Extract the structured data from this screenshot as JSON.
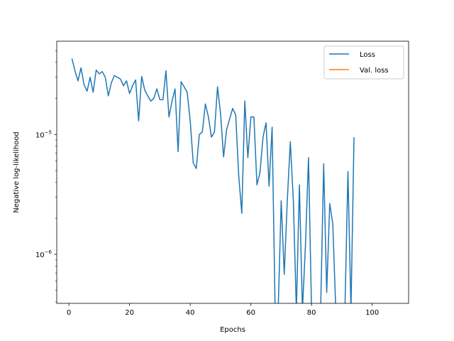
{
  "chart_data": {
    "type": "line",
    "xlabel": "Epochs",
    "ylabel": "Negative log-likelihood",
    "yscale": "log",
    "xlim": [
      -4,
      112
    ],
    "ylim": [
      3.9e-07,
      6e-05
    ],
    "grid": false,
    "legend_position": "top-right",
    "x_ticks": [
      0,
      20,
      40,
      60,
      80,
      100
    ],
    "x_tick_labels": [
      "0",
      "20",
      "40",
      "60",
      "80",
      "100"
    ],
    "y_ticks": [
      1e-06,
      1e-05
    ],
    "y_tick_labels": [
      {
        "base": "10",
        "exp": "−6"
      },
      {
        "base": "10",
        "exp": "−5"
      }
    ],
    "series": [
      {
        "name": "Loss",
        "color": "#1f77b4",
        "x": [
          1,
          2,
          3,
          4,
          5,
          6,
          7,
          8,
          9,
          10,
          11,
          12,
          13,
          14,
          15,
          16,
          17,
          18,
          19,
          20,
          21,
          22,
          23,
          24,
          25,
          26,
          27,
          28,
          29,
          30,
          31,
          32,
          33,
          34,
          35,
          36,
          37,
          38,
          39,
          40,
          41,
          42,
          43,
          44,
          45,
          46,
          47,
          48,
          49,
          50,
          51,
          52,
          53,
          54,
          55,
          56,
          57,
          58,
          59,
          60,
          61,
          62,
          63,
          64,
          65,
          66,
          67,
          68,
          69,
          70,
          71,
          72,
          73,
          74,
          75,
          76,
          77,
          78,
          79,
          80,
          81,
          82,
          83,
          84,
          85,
          86,
          87,
          88,
          89,
          90,
          91,
          92,
          93,
          94
        ],
        "y": [
          4.3e-05,
          3.4e-05,
          2.8e-05,
          3.6e-05,
          2.6e-05,
          2.3e-05,
          3e-05,
          2.25e-05,
          3.45e-05,
          3.2e-05,
          3.35e-05,
          3e-05,
          2.1e-05,
          2.7e-05,
          3.1e-05,
          3e-05,
          2.9e-05,
          2.55e-05,
          2.8e-05,
          2.2e-05,
          2.55e-05,
          2.85e-05,
          1.3e-05,
          3.05e-05,
          2.35e-05,
          2.1e-05,
          1.9e-05,
          2e-05,
          2.4e-05,
          1.95e-05,
          1.95e-05,
          3.4e-05,
          1.4e-05,
          1.9e-05,
          2.4e-05,
          7.2e-06,
          2.75e-05,
          2.5e-05,
          2.25e-05,
          1.3e-05,
          5.8e-06,
          5.2e-06,
          1e-05,
          1.05e-05,
          1.8e-05,
          1.4e-05,
          9.5e-06,
          1.05e-05,
          2.5e-05,
          1.5e-05,
          6.5e-06,
          1.1e-05,
          1.35e-05,
          1.65e-05,
          1.45e-05,
          4.5e-06,
          2.2e-06,
          1.9e-05,
          6.4e-06,
          1.4e-05,
          1.4e-05,
          3.8e-06,
          4.8e-06,
          9.5e-06,
          1.25e-05,
          3.7e-06,
          1.15e-05,
          null,
          null,
          2.8e-06,
          6.8e-07,
          2.8e-06,
          8.7e-06,
          2.8e-06,
          null,
          3.8e-06,
          null,
          1.2e-06,
          6.4e-06,
          null,
          null,
          null,
          null,
          5.7e-06,
          4.8e-07,
          2.65e-06,
          1.8e-06,
          null,
          null,
          null,
          null,
          4.9e-06,
          null,
          9.5e-06
        ]
      },
      {
        "name": "Val. loss",
        "color": "#ff7f0e",
        "x": [],
        "y": []
      }
    ]
  }
}
